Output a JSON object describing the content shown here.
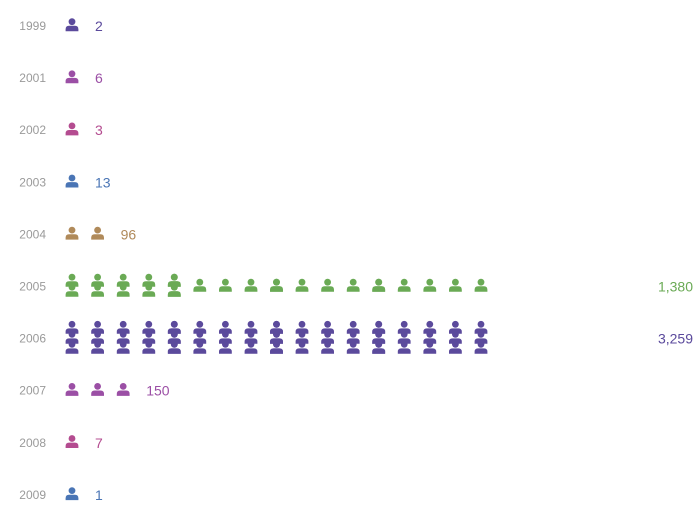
{
  "chart_data": {
    "type": "pictogram",
    "title": "",
    "xlabel": "",
    "ylabel": "",
    "icon": "person-icon",
    "categories": [
      "1999",
      "2001",
      "2002",
      "2003",
      "2004",
      "2005",
      "2006",
      "2007",
      "2008",
      "2009"
    ],
    "values": [
      2,
      6,
      3,
      13,
      96,
      1380,
      3259,
      150,
      7,
      1
    ],
    "value_labels": [
      "2",
      "6",
      "3",
      "13",
      "96",
      "1,380",
      "3,259",
      "150",
      "7",
      "1"
    ],
    "icon_rows": [
      [
        [
          1
        ]
      ],
      [
        [
          1
        ]
      ],
      [
        [
          1
        ]
      ],
      [
        [
          1
        ]
      ],
      [
        [
          1,
          1
        ]
      ],
      [
        [
          2,
          2,
          2,
          2,
          2
        ],
        [
          2,
          1,
          1,
          1,
          1
        ],
        [
          1,
          1,
          1,
          1,
          1
        ],
        [
          1,
          1,
          1,
          1,
          1
        ]
      ],
      [
        [
          3,
          3,
          3,
          3,
          3
        ],
        [
          3,
          3,
          3,
          3,
          3
        ],
        [
          3,
          3,
          3,
          3,
          3
        ],
        [
          3,
          3,
          3,
          3,
          3
        ]
      ],
      [
        [
          1,
          1,
          1
        ]
      ],
      [
        [
          1
        ]
      ],
      [
        [
          1
        ]
      ]
    ],
    "colors": [
      "#5b4a9c",
      "#9b4fa5",
      "#b44c90",
      "#4a75b5",
      "#b08a5a",
      "#6aaa55",
      "#5b4a9c",
      "#9b4fa5",
      "#b44c90",
      "#4a75b5"
    ],
    "grid": false,
    "legend": "none"
  }
}
